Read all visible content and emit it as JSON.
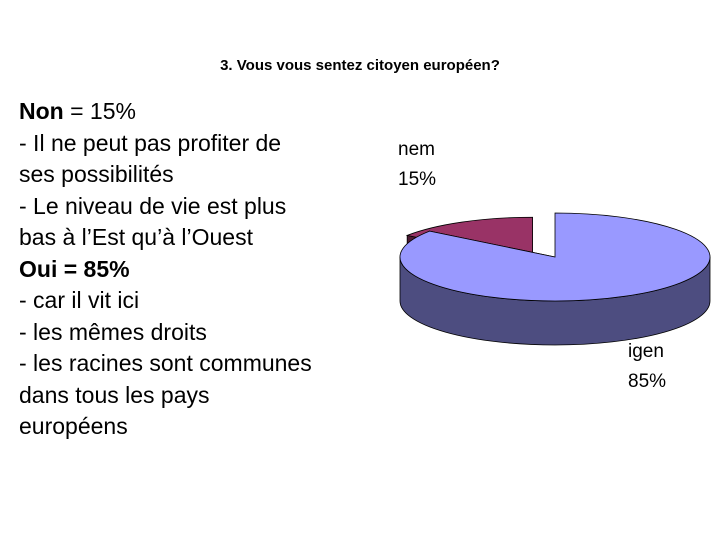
{
  "title": "3. Vous vous sentez citoyen européen?",
  "notes": {
    "no_heading": "Non",
    "no_value": " = 15%",
    "no_reasons": [
      "- Il ne peut pas profiter de",
      "ses possibilités",
      "- Le niveau de vie est plus",
      "bas à l’Est qu’à l’Ouest"
    ],
    "yes_heading": "Oui = 85%",
    "yes_reasons": [
      "- car il vit ici",
      "- les mêmes droits",
      "- les racines sont communes",
      "dans tous les pays",
      "européens"
    ]
  },
  "chart_data": {
    "type": "pie",
    "style": "3d-exploded",
    "slices": [
      {
        "label": "nem",
        "value_label": "15%",
        "value": 15,
        "top_color": "#993366",
        "side_color": "#4d1a33"
      },
      {
        "label": "igen",
        "value_label": "85%",
        "value": 85,
        "top_color": "#9999ff",
        "side_color": "#4d4d80"
      }
    ]
  }
}
